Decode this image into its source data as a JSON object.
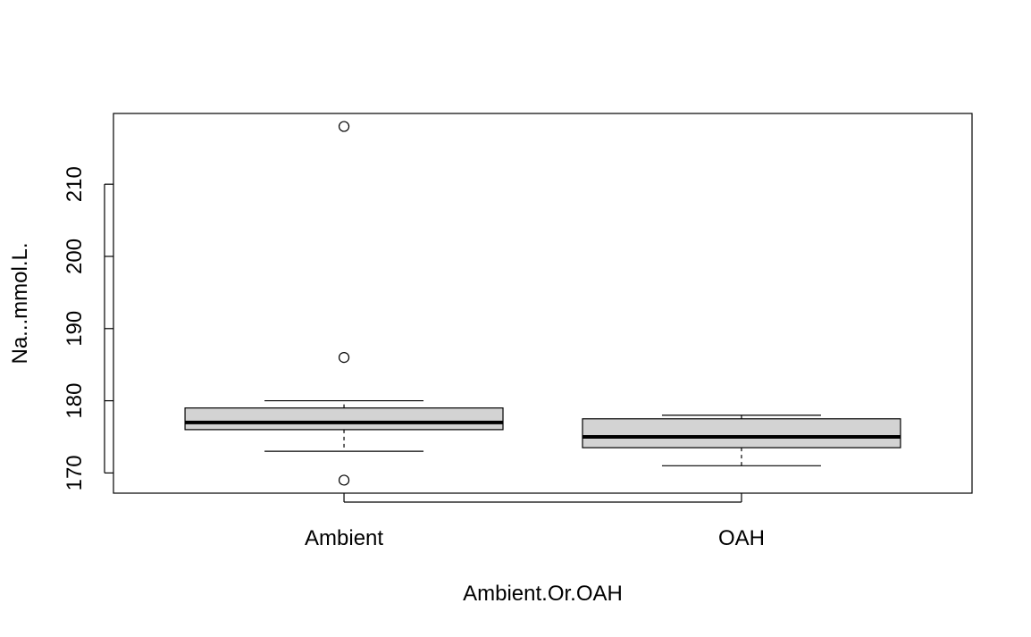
{
  "chart_data": {
    "type": "box",
    "title": "",
    "xlabel": "Ambient.Or.OAH",
    "ylabel": "Na...mmol.L.",
    "ylim": [
      167.2,
      219.8
    ],
    "yticks": [
      170,
      180,
      190,
      200,
      210
    ],
    "categories": [
      "Ambient",
      "OAH"
    ],
    "boxes": [
      {
        "category": "Ambient",
        "whisker_low": 173,
        "q1": 176,
        "median": 177,
        "q3": 179,
        "whisker_high": 180,
        "outliers": [
          169,
          186,
          218
        ]
      },
      {
        "category": "OAH",
        "whisker_low": 171,
        "q1": 173.5,
        "median": 175,
        "q3": 177.5,
        "whisker_high": 178,
        "outliers": []
      }
    ],
    "grid": false,
    "legend": "none",
    "colors": {
      "box_fill": "#d3d3d3",
      "stroke": "#000000",
      "background": "#ffffff"
    }
  }
}
